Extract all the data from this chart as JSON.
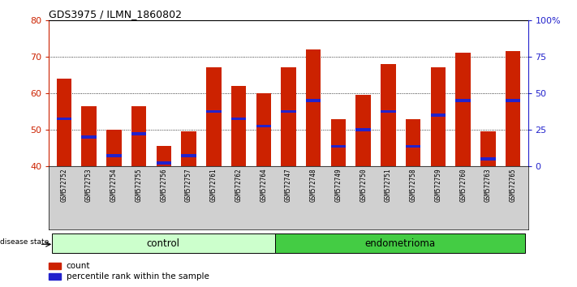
{
  "title": "GDS3975 / ILMN_1860802",
  "samples": [
    "GSM572752",
    "GSM572753",
    "GSM572754",
    "GSM572755",
    "GSM572756",
    "GSM572757",
    "GSM572761",
    "GSM572762",
    "GSM572764",
    "GSM572747",
    "GSM572748",
    "GSM572749",
    "GSM572750",
    "GSM572751",
    "GSM572758",
    "GSM572759",
    "GSM572760",
    "GSM572763",
    "GSM572765"
  ],
  "counts": [
    64,
    56.5,
    50,
    56.5,
    45.5,
    49.5,
    67,
    62,
    60,
    67,
    72,
    53,
    59.5,
    68,
    53,
    67,
    71,
    49.5,
    71.5
  ],
  "percentile_ranks_left": [
    53,
    48,
    43,
    49,
    41,
    43,
    55,
    53,
    51,
    55,
    58,
    45.5,
    50,
    55,
    45.5,
    54,
    58,
    42,
    58
  ],
  "ymin": 40,
  "ymax": 80,
  "ylim_left": [
    40,
    80
  ],
  "ylim_right": [
    0,
    100
  ],
  "yticks_left": [
    40,
    50,
    60,
    70,
    80
  ],
  "yticks_right": [
    0,
    25,
    50,
    75,
    100
  ],
  "ytick_right_labels": [
    "0",
    "25",
    "50",
    "75",
    "100%"
  ],
  "bar_color": "#cc2200",
  "marker_color": "#2222cc",
  "n_control": 9,
  "n_endometrioma": 10,
  "control_label": "control",
  "endometrioma_label": "endometrioma",
  "disease_state_label": "disease state",
  "legend_count_label": "count",
  "legend_pct_label": "percentile rank within the sample",
  "left_axis_color": "#cc2200",
  "right_axis_color": "#2222cc",
  "tick_bg_color": "#d0d0d0",
  "control_color": "#ccffcc",
  "endometrioma_color": "#44cc44"
}
